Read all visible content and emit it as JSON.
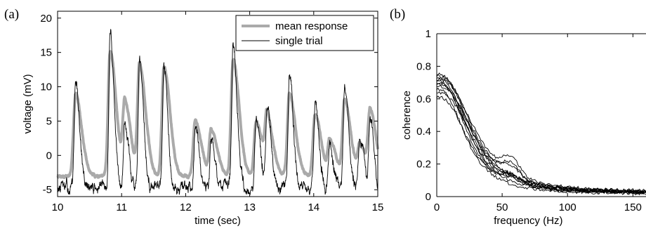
{
  "chart_data": [
    {
      "type": "line",
      "panel_label": "(a)",
      "xlabel": "time (sec)",
      "ylabel": "voltage (mV)",
      "xlim": [
        10,
        15
      ],
      "ylim": [
        -6,
        21
      ],
      "xticks": [
        10,
        11,
        12,
        13,
        14,
        15
      ],
      "yticks": [
        -5,
        0,
        5,
        10,
        15,
        20
      ],
      "legend_position": "top-right",
      "peaks": [
        {
          "t": 10.28,
          "mean": 9.0,
          "single": 11.0
        },
        {
          "t": 10.82,
          "mean": 15.0,
          "single": 18.2
        },
        {
          "t": 11.05,
          "mean": 7.5,
          "single": 5.0
        },
        {
          "t": 11.28,
          "mean": 13.0,
          "single": 13.2
        },
        {
          "t": 11.66,
          "mean": 13.0,
          "single": 12.5
        },
        {
          "t": 12.15,
          "mean": 5.0,
          "single": 5.5
        },
        {
          "t": 12.4,
          "mean": 3.5,
          "single": 2.5
        },
        {
          "t": 12.74,
          "mean": 14.0,
          "single": 16.0
        },
        {
          "t": 13.1,
          "mean": 5.0,
          "single": 6.0
        },
        {
          "t": 13.27,
          "mean": 5.0,
          "single": 6.5
        },
        {
          "t": 13.62,
          "mean": 9.0,
          "single": 11.5
        },
        {
          "t": 14.02,
          "mean": 6.0,
          "single": 8.0
        },
        {
          "t": 14.25,
          "mean": 2.0,
          "single": 1.5
        },
        {
          "t": 14.48,
          "mean": 8.0,
          "single": 10.5
        },
        {
          "t": 14.72,
          "mean": 1.5,
          "single": 2.0
        },
        {
          "t": 14.88,
          "mean": 6.0,
          "single": 5.0
        }
      ],
      "baseline": {
        "mean": -3.0,
        "single": -4.8
      },
      "series": [
        {
          "name": "mean response",
          "color": "#aaaaaa",
          "style": "thick"
        },
        {
          "name": "single trial",
          "color": "#000000",
          "style": "thin"
        }
      ]
    },
    {
      "type": "line",
      "panel_label": "(b)",
      "xlabel": "frequency (Hz)",
      "ylabel": "coherence",
      "xlim": [
        0,
        160
      ],
      "ylim": [
        0,
        1
      ],
      "xticks": [
        0,
        50,
        100,
        150
      ],
      "yticks": [
        0,
        0.2,
        0.4,
        0.6,
        0.8,
        1
      ],
      "ytick_labels": [
        "0",
        "0.2",
        "0.4",
        "0.6",
        "0.8",
        "1"
      ],
      "curves": [
        {
          "start": 0.75,
          "half": 28,
          "tail": 0.02,
          "bump": 0.0
        },
        {
          "start": 0.74,
          "half": 30,
          "tail": 0.02,
          "bump": 0.06
        },
        {
          "start": 0.73,
          "half": 26,
          "tail": 0.015,
          "bump": 0.0
        },
        {
          "start": 0.72,
          "half": 32,
          "tail": 0.025,
          "bump": 0.1
        },
        {
          "start": 0.71,
          "half": 25,
          "tail": 0.02,
          "bump": 0.03
        },
        {
          "start": 0.7,
          "half": 29,
          "tail": 0.03,
          "bump": 0.0
        },
        {
          "start": 0.69,
          "half": 27,
          "tail": 0.02,
          "bump": 0.04
        },
        {
          "start": 0.68,
          "half": 31,
          "tail": 0.02,
          "bump": 0.08
        },
        {
          "start": 0.66,
          "half": 24,
          "tail": 0.015,
          "bump": 0.0
        },
        {
          "start": 0.64,
          "half": 30,
          "tail": 0.02,
          "bump": 0.02
        },
        {
          "start": 0.61,
          "half": 26,
          "tail": 0.025,
          "bump": 0.05
        }
      ]
    }
  ]
}
